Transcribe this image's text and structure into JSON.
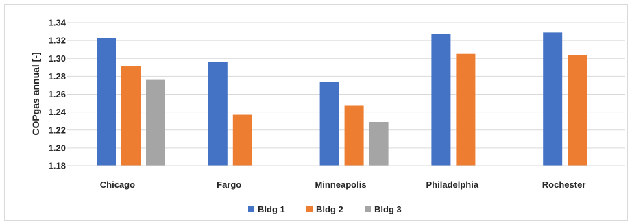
{
  "chart_data": {
    "type": "bar",
    "title": "",
    "xlabel": "",
    "ylabel": "COPgas annual [-]",
    "ylim": [
      1.18,
      1.34
    ],
    "yticks": [
      "1.18",
      "1.20",
      "1.22",
      "1.24",
      "1.26",
      "1.28",
      "1.30",
      "1.32",
      "1.34"
    ],
    "grid": true,
    "legend_position": "bottom",
    "categories": [
      "Chicago",
      "Fargo",
      "Minneapolis",
      "Philadelphia",
      "Rochester"
    ],
    "series": [
      {
        "name": "Bldg 1",
        "color": "#4472C4",
        "values": [
          1.323,
          1.296,
          1.274,
          1.327,
          1.329
        ]
      },
      {
        "name": "Bldg 2",
        "color": "#ED7D31",
        "values": [
          1.291,
          1.237,
          1.247,
          1.305,
          1.304
        ]
      },
      {
        "name": "Bldg 3",
        "color": "#A5A5A5",
        "values": [
          1.276,
          null,
          1.229,
          null,
          null
        ]
      }
    ]
  }
}
